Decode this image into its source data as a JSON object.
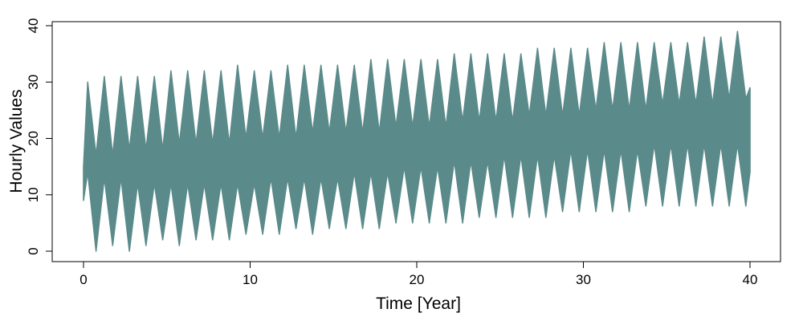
{
  "chart_data": {
    "type": "line",
    "title": "",
    "xlabel": "Time [Year]",
    "ylabel": "Hourly Values",
    "xlim": [
      0,
      40
    ],
    "ylim": [
      0,
      40
    ],
    "x_ticks": [
      0,
      10,
      20,
      30,
      40
    ],
    "y_ticks": [
      0,
      10,
      20,
      30,
      40
    ],
    "x_tick_labels": [
      "0",
      "10",
      "20",
      "30",
      "40"
    ],
    "y_tick_labels": [
      "0",
      "10",
      "20",
      "30",
      "40"
    ],
    "grid": false,
    "legend": "none",
    "series": [
      {
        "color": "#5a8a8a",
        "x": [
          0,
          0.25,
          0.75,
          1.25,
          1.75,
          2.25,
          2.75,
          3.25,
          3.75,
          4.25,
          4.75,
          5.25,
          5.75,
          6.25,
          6.75,
          7.25,
          7.75,
          8.25,
          8.75,
          9.25,
          9.75,
          10.25,
          10.75,
          11.25,
          11.75,
          12.25,
          12.75,
          13.25,
          13.75,
          14.25,
          14.75,
          15.25,
          15.75,
          16.25,
          16.75,
          17.25,
          17.75,
          18.25,
          18.75,
          19.25,
          19.75,
          20.25,
          20.75,
          21.25,
          21.75,
          22.25,
          22.75,
          23.25,
          23.75,
          24.25,
          24.75,
          25.25,
          25.75,
          26.25,
          26.75,
          27.25,
          27.75,
          28.25,
          28.75,
          29.25,
          29.75,
          30.25,
          30.75,
          31.25,
          31.75,
          32.25,
          32.75,
          33.25,
          33.75,
          34.25,
          34.75,
          35.25,
          35.75,
          36.25,
          36.75,
          37.25,
          37.75,
          38.25,
          38.75,
          39.25,
          39.75,
          40
        ],
        "y_low": [
          9,
          14,
          0,
          13,
          1,
          13,
          0,
          12,
          1,
          12,
          2,
          12,
          1,
          12,
          2,
          12,
          2,
          12,
          2,
          12,
          3,
          12,
          3,
          13,
          3,
          13,
          4,
          13,
          3,
          13,
          4,
          13,
          4,
          14,
          4,
          14,
          4,
          14,
          5,
          15,
          5,
          15,
          5,
          15,
          5,
          16,
          5,
          16,
          6,
          16,
          6,
          17,
          6,
          17,
          6,
          17,
          6,
          17,
          7,
          18,
          7,
          18,
          7,
          18,
          7,
          18,
          7,
          18,
          8,
          19,
          8,
          19,
          8,
          19,
          8,
          19,
          8,
          19,
          8,
          19,
          8,
          14
        ],
        "y_high": [
          15,
          30,
          17,
          31,
          17,
          31,
          18,
          31,
          18,
          31,
          18,
          32,
          19,
          32,
          19,
          32,
          19,
          32,
          19,
          33,
          20,
          32,
          20,
          32,
          20,
          33,
          20,
          33,
          21,
          33,
          21,
          33,
          21,
          33,
          21,
          34,
          21,
          34,
          22,
          34,
          22,
          34,
          22,
          34,
          22,
          35,
          23,
          35,
          23,
          35,
          23,
          35,
          23,
          35,
          24,
          36,
          24,
          36,
          24,
          36,
          24,
          36,
          25,
          37,
          25,
          37,
          25,
          37,
          25,
          37,
          26,
          37,
          26,
          37,
          26,
          38,
          26,
          38,
          27,
          39,
          27,
          29
        ]
      }
    ]
  }
}
